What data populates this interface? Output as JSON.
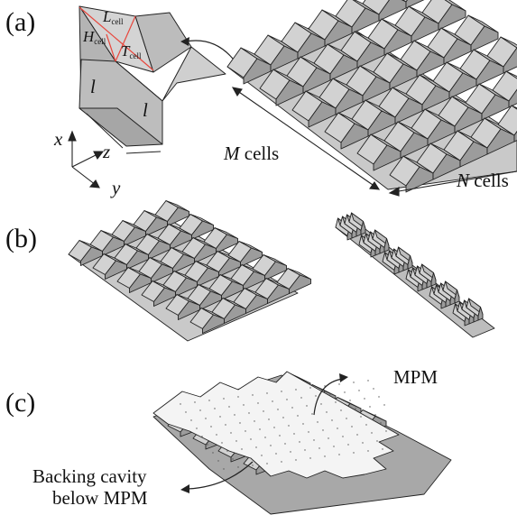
{
  "panels": {
    "a": "(a)",
    "b": "(b)",
    "c": "(c)"
  },
  "cell": {
    "L_main": "L",
    "L_sub": "cell",
    "H_main": "H",
    "H_sub": "cell",
    "T_main": "T",
    "T_sub": "cell",
    "edge1": "l",
    "edge2": "l"
  },
  "axes": {
    "x": "x",
    "y": "y",
    "z": "z"
  },
  "dims": {
    "m_var": "M",
    "m_word": "cells",
    "n_var": "N",
    "n_word": "cells"
  },
  "labels": {
    "mpm": "MPM",
    "backing_line1": "Backing cavity",
    "backing_line2": "below MPM"
  },
  "colors": {
    "face_light": "#d2d2d2",
    "face_mid": "#bdbdbd",
    "face_dark": "#9c9c9c",
    "edge": "#222222",
    "red_lines": "#e8463c",
    "membrane": "#f4f4f4"
  }
}
